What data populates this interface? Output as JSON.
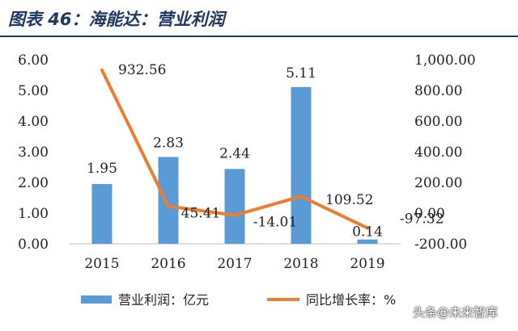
{
  "title": "图表 46：海能达：营业利润",
  "watermark": "头条@未来智库",
  "colors": {
    "bar": "#5b9bd5",
    "line": "#ed7d31",
    "title": "#1f3864",
    "text": "#222222"
  },
  "chart_data": {
    "type": "bar+line",
    "categories": [
      "2015",
      "2016",
      "2017",
      "2018",
      "2019"
    ],
    "series": [
      {
        "name": "营业利润：亿元",
        "type": "bar",
        "axis": "left",
        "values": [
          1.95,
          2.83,
          2.44,
          5.11,
          0.14
        ],
        "labels": [
          "1.95",
          "2.83",
          "2.44",
          "5.11",
          "0.14"
        ]
      },
      {
        "name": "同比增长率：%",
        "type": "line",
        "axis": "right",
        "values": [
          932.56,
          45.41,
          -14.01,
          109.52,
          -97.32
        ],
        "labels": [
          "932.56",
          "45.41",
          "-14.01",
          "109.52",
          "-97.32"
        ]
      }
    ],
    "left_axis": {
      "ylim": [
        0,
        6
      ],
      "ticks": [
        "0.00",
        "1.00",
        "2.00",
        "3.00",
        "4.00",
        "5.00",
        "6.00"
      ]
    },
    "right_axis": {
      "ylim": [
        -200,
        1000
      ],
      "ticks": [
        "-200.00",
        "0.00",
        "200.00",
        "400.00",
        "600.00",
        "800.00",
        "1,000.00"
      ]
    },
    "legend": [
      "营业利润：亿元",
      "同比增长率：%"
    ],
    "legend_position": "bottom"
  }
}
